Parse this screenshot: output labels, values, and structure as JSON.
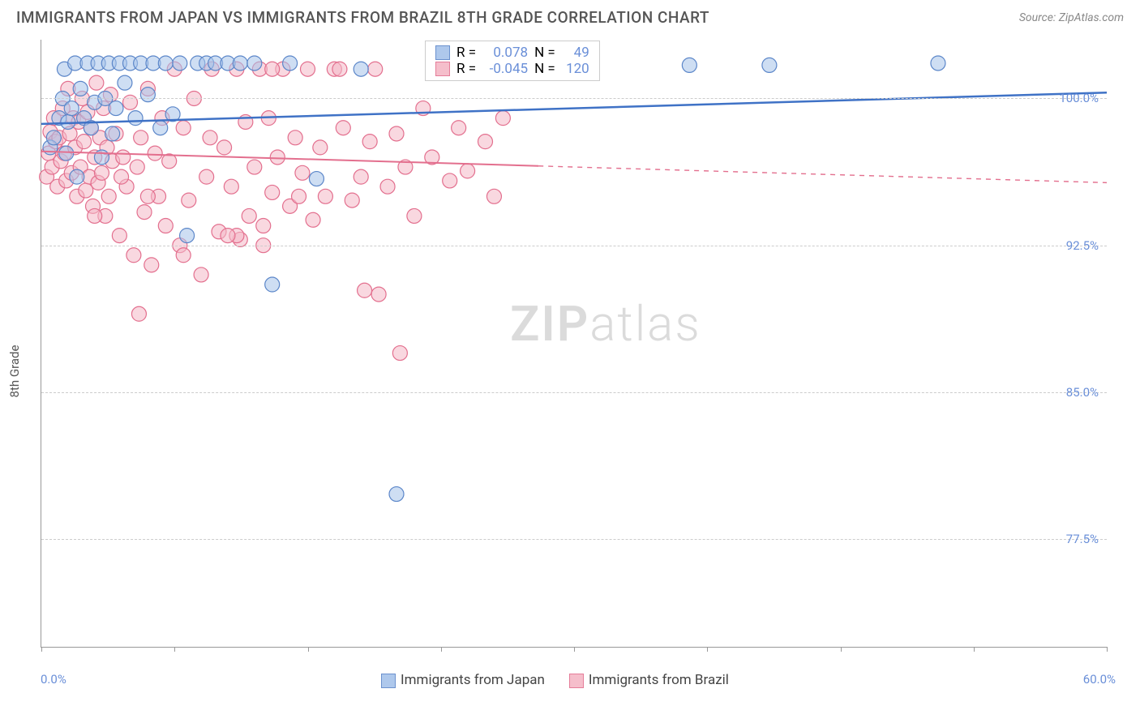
{
  "title": "IMMIGRANTS FROM JAPAN VS IMMIGRANTS FROM BRAZIL 8TH GRADE CORRELATION CHART",
  "source": "Source: ZipAtlas.com",
  "ylabel": "8th Grade",
  "watermark_zip": "ZIP",
  "watermark_atlas": "atlas",
  "chart": {
    "type": "scatter",
    "xlim": [
      0,
      60
    ],
    "ylim": [
      72,
      103
    ],
    "x_label_min": "0.0%",
    "x_label_max": "60.0%",
    "xticks": [
      0,
      7.5,
      15,
      22.5,
      30,
      37.5,
      45,
      52.5,
      60
    ],
    "yticks": [
      {
        "v": 100.0,
        "label": "100.0%"
      },
      {
        "v": 92.5,
        "label": "92.5%"
      },
      {
        "v": 85.0,
        "label": "85.0%"
      },
      {
        "v": 77.5,
        "label": "77.5%"
      }
    ],
    "grid_color": "#cccccc",
    "background": "#ffffff",
    "series": {
      "japan": {
        "label": "Immigrants from Japan",
        "fill": "#a6c3ea",
        "stroke": "#5b86c9",
        "fill_opacity": 0.55,
        "marker_r": 9,
        "R_label": "R =",
        "R": "0.078",
        "N_label": "N =",
        "N": "49",
        "trend": {
          "y_at_xmin": 98.7,
          "y_at_xmax": 100.3,
          "solid_to_x": 60,
          "color": "#3f72c6",
          "width": 2.5
        },
        "points": [
          [
            0.5,
            97.5
          ],
          [
            0.7,
            98.0
          ],
          [
            1.0,
            99.0
          ],
          [
            1.2,
            100.0
          ],
          [
            1.3,
            101.5
          ],
          [
            1.4,
            97.2
          ],
          [
            1.5,
            98.8
          ],
          [
            1.7,
            99.5
          ],
          [
            1.9,
            101.8
          ],
          [
            2.0,
            96.0
          ],
          [
            2.2,
            100.5
          ],
          [
            2.4,
            99.0
          ],
          [
            2.6,
            101.8
          ],
          [
            2.8,
            98.5
          ],
          [
            3.0,
            99.8
          ],
          [
            3.2,
            101.8
          ],
          [
            3.4,
            97.0
          ],
          [
            3.6,
            100.0
          ],
          [
            3.8,
            101.8
          ],
          [
            4.0,
            98.2
          ],
          [
            4.2,
            99.5
          ],
          [
            4.4,
            101.8
          ],
          [
            4.7,
            100.8
          ],
          [
            5.0,
            101.8
          ],
          [
            5.3,
            99.0
          ],
          [
            5.6,
            101.8
          ],
          [
            6.0,
            100.2
          ],
          [
            6.3,
            101.8
          ],
          [
            6.7,
            98.5
          ],
          [
            7.0,
            101.8
          ],
          [
            7.4,
            99.2
          ],
          [
            7.8,
            101.8
          ],
          [
            8.2,
            93.0
          ],
          [
            8.8,
            101.8
          ],
          [
            9.3,
            101.8
          ],
          [
            9.8,
            101.8
          ],
          [
            10.5,
            101.8
          ],
          [
            11.2,
            101.8
          ],
          [
            12.0,
            101.8
          ],
          [
            13.0,
            90.5
          ],
          [
            14.0,
            101.8
          ],
          [
            15.5,
            95.9
          ],
          [
            18.0,
            101.5
          ],
          [
            20.0,
            79.8
          ],
          [
            26.5,
            101.5
          ],
          [
            30.0,
            101.5
          ],
          [
            36.5,
            101.7
          ],
          [
            41.0,
            101.7
          ],
          [
            50.5,
            101.8
          ]
        ]
      },
      "brazil": {
        "label": "Immigrants from Brazil",
        "fill": "#f4b8c6",
        "stroke": "#e36f8e",
        "fill_opacity": 0.55,
        "marker_r": 9,
        "R_label": "R =",
        "R": "-0.045",
        "N_label": "N =",
        "N": "120",
        "trend": {
          "y_at_xmin": 97.3,
          "y_at_xmax": 95.7,
          "solid_to_x": 28,
          "color": "#e36f8e",
          "width": 2
        },
        "points": [
          [
            0.3,
            96.0
          ],
          [
            0.4,
            97.2
          ],
          [
            0.5,
            98.3
          ],
          [
            0.6,
            96.5
          ],
          [
            0.7,
            99.0
          ],
          [
            0.8,
            97.8
          ],
          [
            0.9,
            95.5
          ],
          [
            1.0,
            98.0
          ],
          [
            1.1,
            96.8
          ],
          [
            1.2,
            99.5
          ],
          [
            1.3,
            97.2
          ],
          [
            1.4,
            95.8
          ],
          [
            1.5,
            100.5
          ],
          [
            1.6,
            98.2
          ],
          [
            1.7,
            96.2
          ],
          [
            1.8,
            99.0
          ],
          [
            1.9,
            97.5
          ],
          [
            2.0,
            95.0
          ],
          [
            2.1,
            98.8
          ],
          [
            2.2,
            96.5
          ],
          [
            2.3,
            100.0
          ],
          [
            2.4,
            97.8
          ],
          [
            2.5,
            95.3
          ],
          [
            2.6,
            99.3
          ],
          [
            2.7,
            96.0
          ],
          [
            2.8,
            98.5
          ],
          [
            2.9,
            94.5
          ],
          [
            3.0,
            97.0
          ],
          [
            3.1,
            100.8
          ],
          [
            3.2,
            95.7
          ],
          [
            3.3,
            98.0
          ],
          [
            3.4,
            96.2
          ],
          [
            3.5,
            99.5
          ],
          [
            3.6,
            94.0
          ],
          [
            3.7,
            97.5
          ],
          [
            3.8,
            95.0
          ],
          [
            3.9,
            100.2
          ],
          [
            4.0,
            96.8
          ],
          [
            4.2,
            98.2
          ],
          [
            4.4,
            93.0
          ],
          [
            4.6,
            97.0
          ],
          [
            4.8,
            95.5
          ],
          [
            5.0,
            99.8
          ],
          [
            5.2,
            92.0
          ],
          [
            5.4,
            96.5
          ],
          [
            5.6,
            98.0
          ],
          [
            5.8,
            94.2
          ],
          [
            6.0,
            100.5
          ],
          [
            6.2,
            91.5
          ],
          [
            6.4,
            97.2
          ],
          [
            6.6,
            95.0
          ],
          [
            6.8,
            99.0
          ],
          [
            7.0,
            93.5
          ],
          [
            7.2,
            96.8
          ],
          [
            7.5,
            101.5
          ],
          [
            7.8,
            92.5
          ],
          [
            8.0,
            98.5
          ],
          [
            8.3,
            94.8
          ],
          [
            8.6,
            100.0
          ],
          [
            9.0,
            91.0
          ],
          [
            9.3,
            96.0
          ],
          [
            9.6,
            101.5
          ],
          [
            10.0,
            93.2
          ],
          [
            10.3,
            97.5
          ],
          [
            10.7,
            95.5
          ],
          [
            11.0,
            101.5
          ],
          [
            11.2,
            92.8
          ],
          [
            11.5,
            98.8
          ],
          [
            11.7,
            94.0
          ],
          [
            12.0,
            96.5
          ],
          [
            12.3,
            101.5
          ],
          [
            12.5,
            93.5
          ],
          [
            12.8,
            99.0
          ],
          [
            13.0,
            95.2
          ],
          [
            13.3,
            97.0
          ],
          [
            13.6,
            101.5
          ],
          [
            14.0,
            94.5
          ],
          [
            14.3,
            98.0
          ],
          [
            14.7,
            96.2
          ],
          [
            15.0,
            101.5
          ],
          [
            15.3,
            93.8
          ],
          [
            15.7,
            97.5
          ],
          [
            16.0,
            95.0
          ],
          [
            16.5,
            101.5
          ],
          [
            17.0,
            98.5
          ],
          [
            17.5,
            94.8
          ],
          [
            18.0,
            96.0
          ],
          [
            18.2,
            90.2
          ],
          [
            18.5,
            97.8
          ],
          [
            18.8,
            101.5
          ],
          [
            19.0,
            90.0
          ],
          [
            19.5,
            95.5
          ],
          [
            20.0,
            98.2
          ],
          [
            20.2,
            87.0
          ],
          [
            20.5,
            96.5
          ],
          [
            21.0,
            94.0
          ],
          [
            21.5,
            99.5
          ],
          [
            22.0,
            97.0
          ],
          [
            22.5,
            101.5
          ],
          [
            23.0,
            95.8
          ],
          [
            23.5,
            98.5
          ],
          [
            24.0,
            96.3
          ],
          [
            24.5,
            101.5
          ],
          [
            25.0,
            97.8
          ],
          [
            25.5,
            95.0
          ],
          [
            26.0,
            99.0
          ],
          [
            26.2,
            101.5
          ],
          [
            27.0,
            101.5
          ],
          [
            11.0,
            93.0
          ],
          [
            4.5,
            96.0
          ],
          [
            5.5,
            89.0
          ],
          [
            8.0,
            92.0
          ],
          [
            10.5,
            93.0
          ],
          [
            12.5,
            92.5
          ],
          [
            13.0,
            101.5
          ],
          [
            14.5,
            95.0
          ],
          [
            16.8,
            101.5
          ],
          [
            6.0,
            95.0
          ],
          [
            9.5,
            98.0
          ],
          [
            3.0,
            94.0
          ]
        ]
      }
    }
  }
}
